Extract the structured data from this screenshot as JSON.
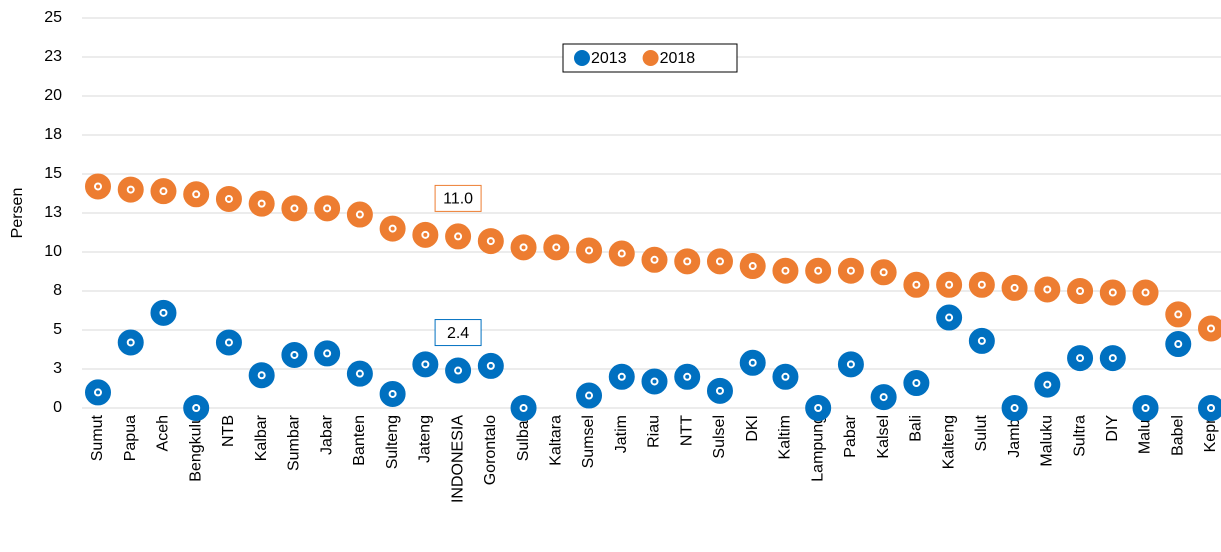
{
  "chart_data": {
    "type": "dot",
    "y_label": "Persen",
    "categories": [
      "Sumut",
      "Papua",
      "Aceh",
      "Bengkulu",
      "NTB",
      "Kalbar",
      "Sumbar",
      "Jabar",
      "Banten",
      "Sulteng",
      "Jateng",
      "INDONESIA",
      "Gorontalo",
      "Sulbar",
      "Kaltara",
      "Sumsel",
      "Jatim",
      "Riau",
      "NTT",
      "Sulsel",
      "DKI",
      "Kaltim",
      "Lampung",
      "Pabar",
      "Kalsel",
      "Bali",
      "Kalteng",
      "Sulut",
      "Jambi",
      "Maluku",
      "Sultra",
      "DIY",
      "Malut",
      "Babel",
      "Kepri"
    ],
    "series": [
      {
        "name": "2013",
        "color": "#0070c0",
        "values": [
          1.0,
          4.2,
          6.1,
          0,
          4.2,
          2.1,
          3.4,
          3.5,
          2.2,
          0.9,
          2.8,
          2.4,
          2.7,
          0,
          null,
          0.8,
          2.0,
          1.7,
          2.0,
          1.1,
          2.9,
          2.0,
          0,
          2.8,
          0.7,
          1.6,
          5.8,
          4.3,
          0,
          1.5,
          3.2,
          3.2,
          0,
          4.1,
          0
        ],
        "value_labels": [
          null,
          null,
          null,
          null,
          null,
          null,
          null,
          null,
          null,
          null,
          null,
          "2.4",
          null,
          null,
          null,
          null,
          null,
          null,
          null,
          null,
          null,
          null,
          null,
          null,
          null,
          null,
          null,
          null,
          null,
          null,
          null,
          null,
          null,
          null,
          null
        ]
      },
      {
        "name": "2018",
        "color": "#ed7d31",
        "values": [
          14.2,
          14.0,
          13.9,
          13.7,
          13.4,
          13.1,
          12.8,
          12.8,
          12.4,
          11.5,
          11.1,
          11.0,
          10.7,
          10.3,
          10.3,
          10.1,
          9.9,
          9.5,
          9.4,
          9.4,
          9.1,
          8.8,
          8.8,
          8.8,
          8.7,
          7.9,
          7.9,
          7.9,
          7.7,
          7.6,
          7.5,
          7.4,
          7.4,
          6.0,
          5.1
        ],
        "value_labels": [
          null,
          null,
          null,
          null,
          null,
          null,
          null,
          null,
          null,
          null,
          null,
          "11.0",
          null,
          null,
          null,
          null,
          null,
          null,
          null,
          null,
          null,
          null,
          null,
          null,
          null,
          null,
          null,
          null,
          null,
          null,
          null,
          null,
          null,
          null,
          null
        ]
      }
    ],
    "ylim": [
      0,
      25
    ],
    "yticks": [
      0,
      {
        "value": 2.5,
        "label": "3"
      },
      5,
      {
        "value": 7.5,
        "label": "8"
      },
      10,
      {
        "value": 12.5,
        "label": "13"
      },
      15,
      {
        "value": 17.5,
        "label": "18"
      },
      20,
      {
        "value": 22.5,
        "label": "23"
      },
      25
    ],
    "grid": true,
    "legend": "top"
  }
}
